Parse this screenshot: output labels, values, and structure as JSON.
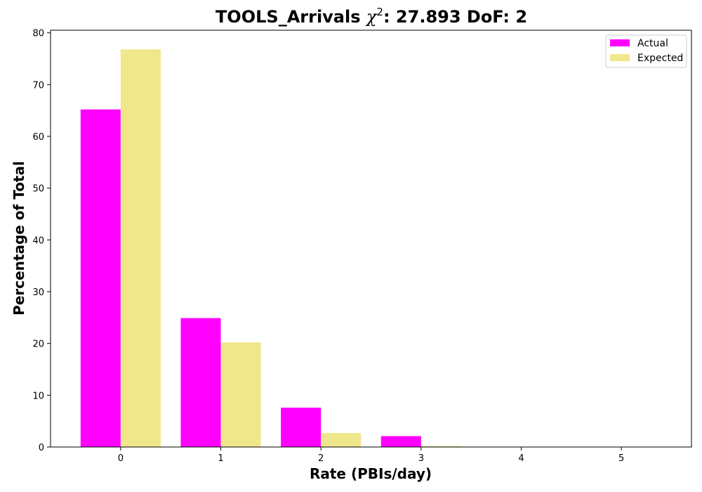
{
  "chart_data": {
    "type": "bar",
    "title_prefix": "TOOLS_Arrivals ",
    "title_chi": "χ",
    "title_sup": "2",
    "title_suffix": ": 27.893 DoF: 2",
    "xlabel": "Rate (PBIs/day)",
    "ylabel": "Percentage of Total",
    "categories": [
      "0",
      "1",
      "2",
      "3",
      "4",
      "5"
    ],
    "x": [
      0,
      1,
      2,
      3,
      4,
      5
    ],
    "xlim": [
      -0.7,
      5.7
    ],
    "ylim": [
      0,
      80.5
    ],
    "yticks": [
      0,
      10,
      20,
      30,
      40,
      50,
      60,
      70,
      80
    ],
    "grid": false,
    "legend_position": "top-right",
    "series": [
      {
        "name": "Actual",
        "color": "#ff00ff",
        "values": [
          65.2,
          24.9,
          7.6,
          2.1,
          0.0,
          0.0
        ]
      },
      {
        "name": "Expected",
        "color": "#f0e68c",
        "values": [
          76.8,
          20.2,
          2.7,
          0.2,
          0.0,
          0.0
        ]
      }
    ]
  }
}
